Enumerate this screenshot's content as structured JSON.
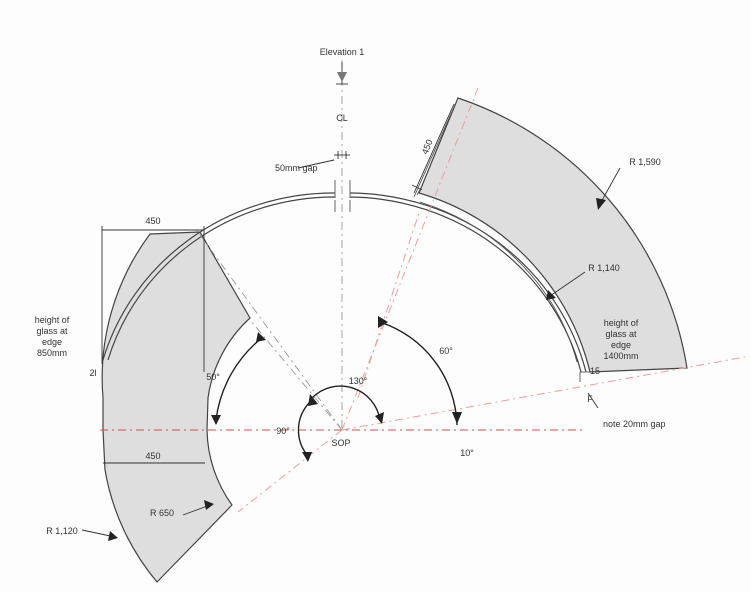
{
  "labels": {
    "elevation": "Elevation 1",
    "centerline": "CL",
    "gap_top": "50mm gap",
    "width_top_right": "450",
    "radius_outer_right": "R 1,590",
    "radius_inner_right": "R 1,140",
    "height_right": [
      "height of",
      "glass at",
      "edge",
      "1400mm"
    ],
    "label_right_edge": "15",
    "label_right_bottom": "F",
    "note_gap": "note 20mm gap",
    "angle_60": "60°",
    "angle_130": "130°",
    "angle_90": "90°",
    "angle_50": "50°",
    "angle_10": "10°",
    "origin": "SOP",
    "width_left_top": "450",
    "width_left_bottom": "450",
    "height_left": [
      "height of",
      "glass at",
      "edge",
      "850mm"
    ],
    "label_left_edge": "2l",
    "radius_inner_left": "R 650",
    "radius_outer_left": "R 1,120"
  }
}
